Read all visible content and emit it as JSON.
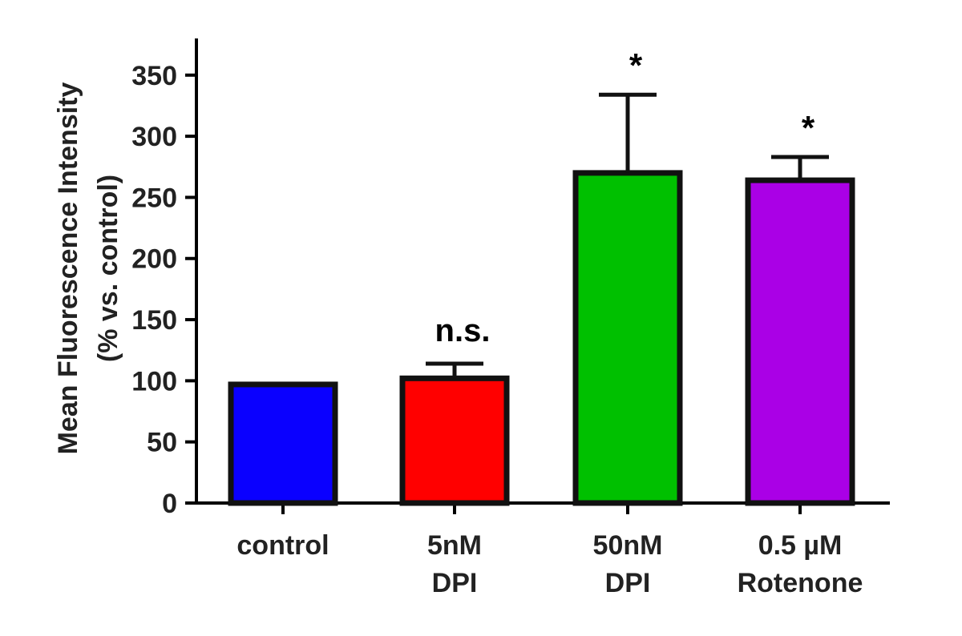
{
  "chart_data": {
    "type": "bar",
    "categories": [
      [
        "control"
      ],
      [
        "5nM",
        "DPI"
      ],
      [
        "50nM",
        "DPI"
      ],
      [
        "0.5 µM",
        "Rotenone"
      ]
    ],
    "values": [
      97,
      102,
      270,
      264
    ],
    "errors": [
      0,
      12,
      64,
      19
    ],
    "annotations": [
      "",
      "n.s.",
      "*",
      "*"
    ],
    "colors": [
      "#0a00ff",
      "#ff0000",
      "#00c000",
      "#aa00e6"
    ],
    "ylabel_lines": [
      "Mean Fluorescence Intensity",
      "(% vs. control)"
    ],
    "ylim": [
      0,
      380
    ],
    "yticks": [
      0,
      50,
      100,
      150,
      200,
      250,
      300,
      350
    ],
    "grid": false,
    "legend": "none"
  }
}
